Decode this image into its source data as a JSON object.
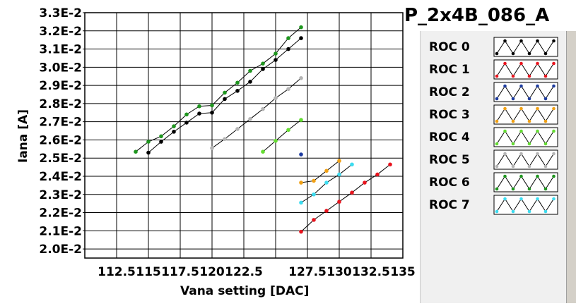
{
  "chart_data": {
    "type": "line",
    "title": "P_2x4B_086_A",
    "xlabel": "Vana setting [DAC]",
    "ylabel": "Iana [A]",
    "xlim": [
      110,
      135
    ],
    "ylim": [
      0.0195,
      0.033
    ],
    "x_tick_labels": [
      "112.5",
      "115",
      "117.5",
      "120",
      "122.5",
      "127.5",
      "130",
      "132.5",
      "135"
    ],
    "x_tick_values": [
      112.5,
      115,
      117.5,
      120,
      122.5,
      127.5,
      130,
      132.5,
      135
    ],
    "y_tick_labels": [
      "2.0E-2",
      "2.1E-2",
      "2.2E-2",
      "2.3E-2",
      "2.4E-2",
      "2.5E-2",
      "2.6E-2",
      "2.7E-2",
      "2.8E-2",
      "2.9E-2",
      "3.0E-2",
      "3.1E-2",
      "3.2E-2",
      "3.3E-2"
    ],
    "y_tick_values": [
      0.02,
      0.021,
      0.022,
      0.023,
      0.024,
      0.025,
      0.026,
      0.027,
      0.028,
      0.029,
      0.03,
      0.031,
      0.032,
      0.033
    ],
    "grid": true,
    "legend_placement": "right",
    "series": [
      {
        "name": "ROC 0",
        "color": "#000000",
        "x": [
          115,
          116,
          117,
          118,
          119,
          120,
          121,
          122,
          123,
          124,
          125,
          126,
          127
        ],
        "y": [
          0.0253,
          0.0259,
          0.02645,
          0.02695,
          0.02745,
          0.0275,
          0.02825,
          0.0287,
          0.0292,
          0.0299,
          0.0304,
          0.031,
          0.0316
        ]
      },
      {
        "name": "ROC 1",
        "color": "#e8141e",
        "x": [
          127,
          128,
          129,
          130,
          131,
          132,
          133,
          134
        ],
        "y": [
          0.02095,
          0.0216,
          0.0221,
          0.0226,
          0.0231,
          0.02365,
          0.0241,
          0.02465
        ]
      },
      {
        "name": "ROC 2",
        "color": "#1e3ca0",
        "x": [
          127
        ],
        "y": [
          0.0252
        ]
      },
      {
        "name": "ROC 3",
        "color": "#f0a014",
        "x": [
          127,
          128,
          129,
          130
        ],
        "y": [
          0.02365,
          0.02375,
          0.0243,
          0.02485
        ]
      },
      {
        "name": "ROC 4",
        "color": "#64dc32",
        "x": [
          124,
          125,
          126,
          127
        ],
        "y": [
          0.02535,
          0.02595,
          0.02655,
          0.0271
        ]
      },
      {
        "name": "ROC 5",
        "color": "#b4b4b4",
        "x": [
          120,
          121,
          122,
          123,
          124,
          125,
          126,
          127
        ],
        "y": [
          0.02555,
          0.02605,
          0.0266,
          0.02715,
          0.0277,
          0.0283,
          0.0288,
          0.0294
        ]
      },
      {
        "name": "ROC 6",
        "color": "#1e961e",
        "x": [
          114,
          115,
          116,
          117,
          118,
          119,
          120,
          121,
          122,
          123,
          124,
          125,
          126,
          127
        ],
        "y": [
          0.02535,
          0.0259,
          0.0262,
          0.02675,
          0.0274,
          0.02785,
          0.0279,
          0.0286,
          0.02915,
          0.0298,
          0.0302,
          0.03075,
          0.0316,
          0.0322
        ]
      },
      {
        "name": "ROC 7",
        "color": "#3cdcf0",
        "x": [
          127,
          128,
          129,
          130,
          131
        ],
        "y": [
          0.02255,
          0.023,
          0.02365,
          0.0241,
          0.02465
        ]
      }
    ]
  }
}
